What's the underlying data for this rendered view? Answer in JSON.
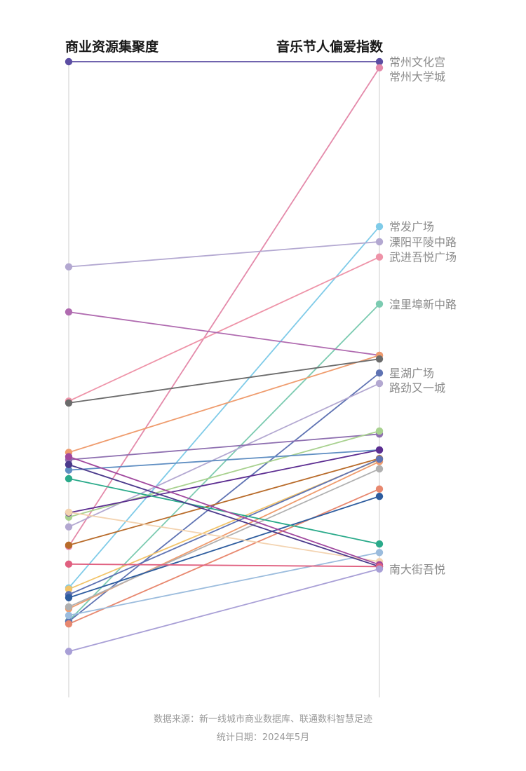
{
  "chart_data": {
    "type": "slope",
    "left_axis_title": "商业资源集聚度",
    "right_axis_title": "音乐节人偏爱指数",
    "ylim": [
      0,
      100
    ],
    "series": [
      {
        "name": "常州文化宫",
        "left": 100.0,
        "right": 100.0,
        "color": "#5c4ea3"
      },
      {
        "name": "常州大学城",
        "left": 20.6,
        "right": 99.0,
        "color": "#e48aaa"
      },
      {
        "name": "常发广场",
        "left": 13.8,
        "right": 73.0,
        "color": "#7fcbe8"
      },
      {
        "name": "溧阳平陵中路",
        "left": 66.4,
        "right": 70.5,
        "color": "#b3a8d1"
      },
      {
        "name": "武进吾悦广场",
        "left": 44.4,
        "right": 68.0,
        "color": "#ee93a8"
      },
      {
        "name": "湟里埠新中路",
        "left": 8.4,
        "right": 60.3,
        "color": "#7ccbb1"
      },
      {
        "name": "",
        "left": 59.0,
        "right": 51.9,
        "color": "#b06bb0"
      },
      {
        "name": "",
        "left": 36.0,
        "right": 51.9,
        "color": "#ef9c6e"
      },
      {
        "name": "",
        "left": 44.1,
        "right": 51.3,
        "color": "#6b6b6b"
      },
      {
        "name": "星湖广场",
        "left": 8.3,
        "right": 49.0,
        "color": "#5f73b3"
      },
      {
        "name": "路劲又一城",
        "left": 23.8,
        "right": 47.3,
        "color": "#b3a8d1"
      },
      {
        "name": "",
        "left": 34.8,
        "right": 39.0,
        "color": "#8e6fb0"
      },
      {
        "name": "",
        "left": 25.4,
        "right": 39.5,
        "color": "#a8d18f"
      },
      {
        "name": "",
        "left": 33.1,
        "right": 36.4,
        "color": "#5f8ec2"
      },
      {
        "name": "",
        "left": 26.1,
        "right": 36.4,
        "color": "#5c2d91"
      },
      {
        "name": "",
        "left": 20.8,
        "right": 35.0,
        "color": "#b86b2a"
      },
      {
        "name": "",
        "left": 13.6,
        "right": 34.8,
        "color": "#f2c46a"
      },
      {
        "name": "",
        "left": 10.4,
        "right": 34.5,
        "color": "#ef9c6e"
      },
      {
        "name": "",
        "left": 12.7,
        "right": 34.9,
        "color": "#5f73b3"
      },
      {
        "name": "",
        "left": 10.7,
        "right": 33.3,
        "color": "#b0b0b0"
      },
      {
        "name": "",
        "left": 7.9,
        "right": 30.0,
        "color": "#e8886f"
      },
      {
        "name": "",
        "left": 12.2,
        "right": 28.8,
        "color": "#2d5c9e"
      },
      {
        "name": "",
        "left": 31.7,
        "right": 21.0,
        "color": "#2aaa8a"
      },
      {
        "name": "",
        "left": 9.3,
        "right": 19.6,
        "color": "#9bbcdd"
      },
      {
        "name": "",
        "left": 26.2,
        "right": 18.1,
        "color": "#f3d3b0"
      },
      {
        "name": "",
        "left": 35.3,
        "right": 17.6,
        "color": "#a0489e"
      },
      {
        "name": "",
        "left": 34.0,
        "right": 17.3,
        "color": "#4b3a8c"
      },
      {
        "name": "",
        "left": 17.7,
        "right": 17.3,
        "color": "#e06080"
      },
      {
        "name": "南大街吾悦",
        "left": 3.4,
        "right": 16.9,
        "color": "#a89fd6"
      }
    ]
  },
  "footer": {
    "source": "数据来源：新一线城市商业数据库、联通数科智慧足迹",
    "date": "统计日期：2024年5月"
  }
}
